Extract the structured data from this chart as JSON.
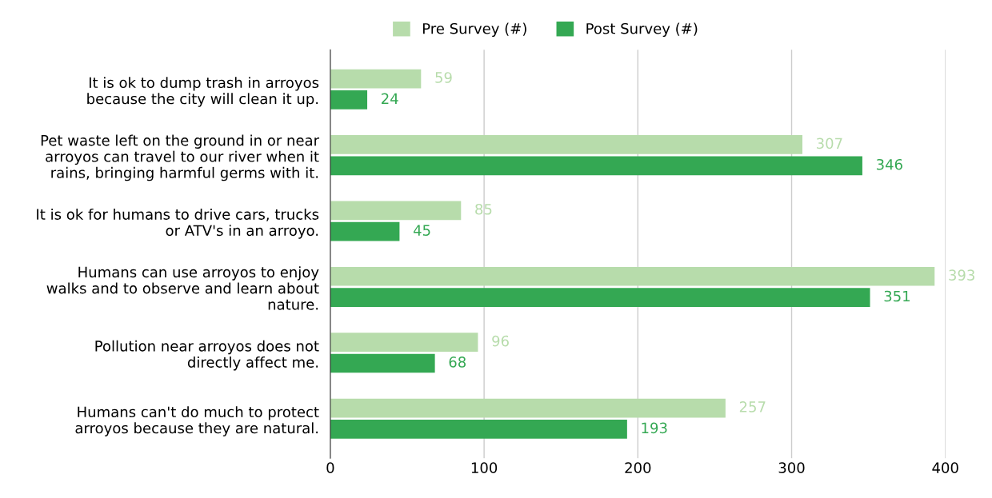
{
  "chart_data": {
    "type": "bar",
    "orientation": "horizontal",
    "categories": [
      "It is ok to dump trash in arroyos\nbecause the city will clean it up.",
      "Pet waste left on the ground in or near\narroyos can travel to our river when it\nrains, bringing harmful germs with it.",
      "It is ok for humans to drive cars, trucks\nor ATV's in an arroyo.",
      "Humans can use arroyos to enjoy\nwalks and to observe and learn about\nnature.",
      "Pollution near arroyos does not\ndirectly affect me.",
      "Humans can't do much to protect\narroyos because they are natural."
    ],
    "series": [
      {
        "name": "Pre Survey (#)",
        "color": "#b7dcab",
        "values": [
          59,
          307,
          85,
          393,
          96,
          257
        ]
      },
      {
        "name": "Post Survey (#)",
        "color": "#34a853",
        "values": [
          24,
          346,
          45,
          351,
          68,
          193
        ]
      }
    ],
    "xlim": [
      0,
      400
    ],
    "xticks": [
      0,
      100,
      200,
      300,
      400
    ],
    "grid": "x",
    "legend": "top",
    "data_labels": true
  }
}
